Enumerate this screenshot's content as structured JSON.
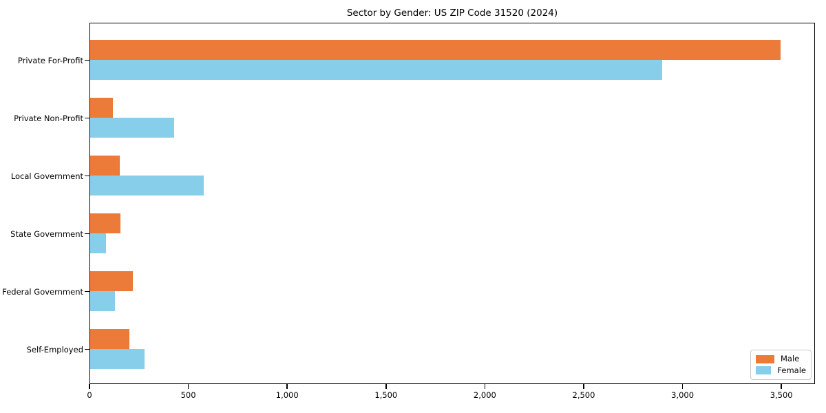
{
  "chart_data": {
    "type": "bar",
    "orientation": "horizontal",
    "title": "Sector by Gender: US ZIP Code 31520 (2024)",
    "xlabel": "",
    "ylabel": "",
    "categories": [
      "Private For-Profit",
      "Private Non-Profit",
      "Local Government",
      "State Government",
      "Federal Government",
      "Self-Employed"
    ],
    "series": [
      {
        "name": "Male",
        "color": "#EC7A39",
        "values": [
          3500,
          115,
          150,
          155,
          215,
          200
        ]
      },
      {
        "name": "Female",
        "color": "#87CEEB",
        "values": [
          2900,
          425,
          575,
          80,
          125,
          275
        ]
      }
    ],
    "xlim": [
      0,
      3670
    ],
    "xticks": [
      0,
      500,
      1000,
      1500,
      2000,
      2500,
      3000,
      3500
    ],
    "xtick_labels": [
      "0",
      "500",
      "1,000",
      "1,500",
      "2,000",
      "2,500",
      "3,000",
      "3,500"
    ],
    "grid": false,
    "legend": {
      "position": "lower-right",
      "border_color": "#C8C8C8"
    }
  },
  "colors": {
    "background": "#FFFFFF",
    "axis": "#000000",
    "text": "#000000"
  }
}
